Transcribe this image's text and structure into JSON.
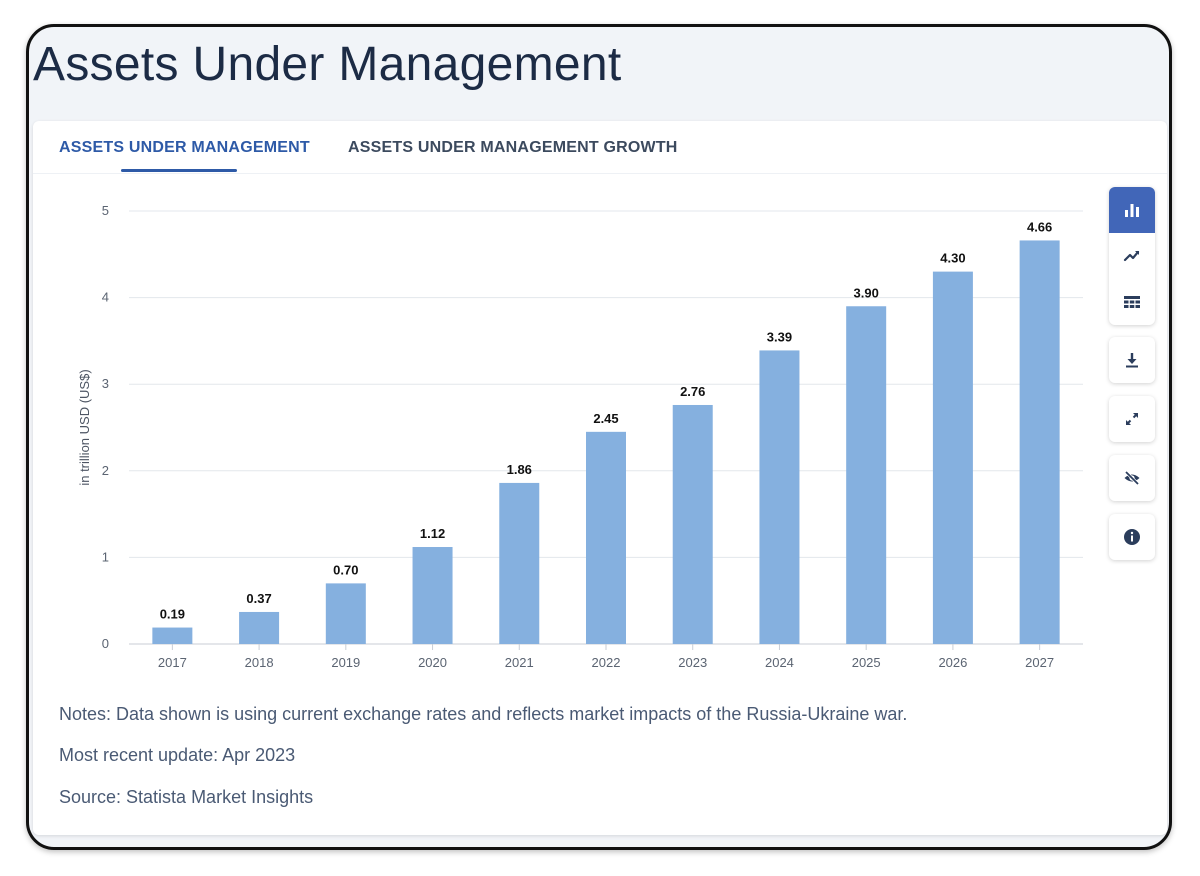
{
  "page_title": "Assets Under Management",
  "tabs": [
    {
      "label": "ASSETS UNDER MANAGEMENT",
      "active": true
    },
    {
      "label": "ASSETS UNDER MANAGEMENT GROWTH",
      "active": false
    }
  ],
  "toolbar": {
    "icons": [
      "bar-chart-icon",
      "line-chart-icon",
      "table-icon",
      "download-icon",
      "fullscreen-icon",
      "hide-icon",
      "info-icon"
    ],
    "active_color": "#4166b8"
  },
  "chart_data": {
    "type": "bar",
    "categories": [
      "2017",
      "2018",
      "2019",
      "2020",
      "2021",
      "2022",
      "2023",
      "2024",
      "2025",
      "2026",
      "2027"
    ],
    "values": [
      0.19,
      0.37,
      0.7,
      1.12,
      1.86,
      2.45,
      2.76,
      3.39,
      3.9,
      4.3,
      4.66
    ],
    "value_labels": [
      "0.19",
      "0.37",
      "0.70",
      "1.12",
      "1.86",
      "2.45",
      "2.76",
      "3.39",
      "3.90",
      "4.30",
      "4.66"
    ],
    "ylabel": "in trillion USD (US$)",
    "xlabel": "",
    "ylim": [
      0,
      5
    ],
    "yticks": [
      "0",
      "1",
      "2",
      "3",
      "4",
      "5"
    ],
    "grid": true,
    "bar_color": "#85b0df"
  },
  "notes": {
    "note": "Notes: Data shown is using current exchange rates and reflects market impacts of the Russia-Ukraine war.",
    "update": "Most recent update: Apr 2023",
    "source": "Source: Statista Market Insights"
  }
}
